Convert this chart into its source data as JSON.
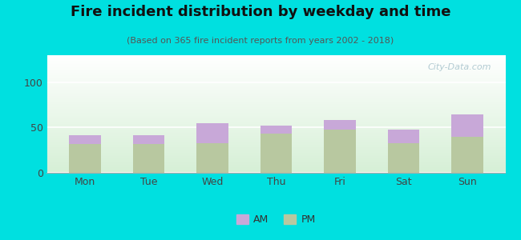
{
  "title": "Fire incident distribution by weekday and time",
  "subtitle": "(Based on 365 fire incident reports from years 2002 - 2018)",
  "categories": [
    "Mon",
    "Tue",
    "Wed",
    "Thu",
    "Fri",
    "Sat",
    "Sun"
  ],
  "pm_values": [
    32,
    32,
    33,
    43,
    48,
    33,
    40
  ],
  "am_values": [
    10,
    10,
    22,
    9,
    10,
    15,
    25
  ],
  "am_color": "#c8a8d8",
  "pm_color": "#b8c8a0",
  "background_color": "#00e0e0",
  "ylim": [
    0,
    130
  ],
  "yticks": [
    0,
    50,
    100
  ],
  "bar_width": 0.5,
  "title_fontsize": 13,
  "subtitle_fontsize": 8,
  "tick_fontsize": 9,
  "watermark": "City-Data.com"
}
